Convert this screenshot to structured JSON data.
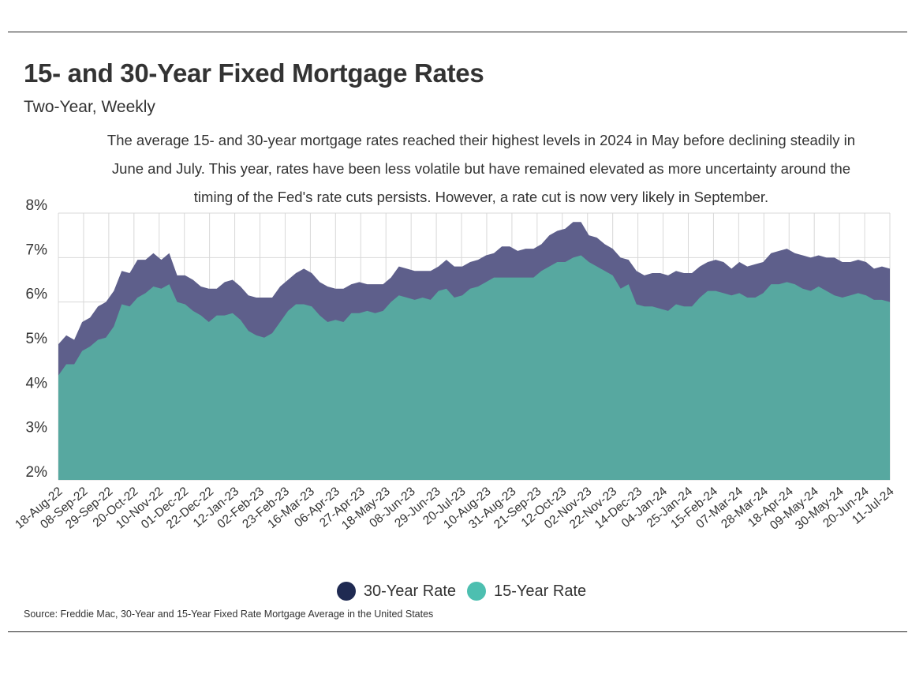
{
  "title": "15- and 30-Year Fixed Mortgage Rates",
  "subtitle": "Two-Year, Weekly",
  "description": "The average 15- and 30-year mortgage rates reached their highest levels in 2024 in May before declining steadily in June and July. This year, rates have been less volatile but have remained elevated as more uncertainty around the timing of the Fed's rate cuts persists. However, a rate cut is now very likely in September.",
  "source": "Source:  Freddie Mac, 30-Year  and 15-Year Fixed Rate Mortgage Average in the United States",
  "colors": {
    "rate30_fill": "#5e5f8b",
    "rate15_fill": "#57a8a0",
    "rate30_legend": "#1f2a52",
    "rate15_legend": "#4dbfb0",
    "grid": "#d8d8d8"
  },
  "chart_data": {
    "type": "area",
    "title": "15- and 30-Year Fixed Mortgage Rates",
    "subtitle": "Two-Year, Weekly",
    "ylim": [
      2,
      8
    ],
    "yticks": [
      "2%",
      "3%",
      "4%",
      "5%",
      "6%",
      "7%",
      "8%"
    ],
    "grid": true,
    "legend_position": "bottom-center",
    "x_tick_labels": [
      "18-Aug-22",
      "08-Sep-22",
      "29-Sep-22",
      "20-Oct-22",
      "10-Nov-22",
      "01-Dec-22",
      "22-Dec-22",
      "12-Jan-23",
      "02-Feb-23",
      "23-Feb-23",
      "16-Mar-23",
      "06-Apr-23",
      "27-Apr-23",
      "18-May-23",
      "08-Jun-23",
      "29-Jun-23",
      "20-Jul-23",
      "10-Aug-23",
      "31-Aug-23",
      "21-Sep-23",
      "12-Oct-23",
      "02-Nov-23",
      "22-Nov-23",
      "14-Dec-23",
      "04-Jan-24",
      "25-Jan-24",
      "15-Feb-24",
      "07-Mar-24",
      "28-Mar-24",
      "18-Apr-24",
      "09-May-24",
      "30-May-24",
      "20-Jun-24",
      "11-Jul-24"
    ],
    "x_range": [
      "18-Aug-22",
      "11-Jul-24"
    ],
    "series": [
      {
        "name": "30-Year Rate",
        "values": [
          5.05,
          5.25,
          5.15,
          5.55,
          5.65,
          5.9,
          6.0,
          6.25,
          6.7,
          6.65,
          6.95,
          6.95,
          7.1,
          6.95,
          7.1,
          6.6,
          6.6,
          6.5,
          6.35,
          6.3,
          6.3,
          6.45,
          6.5,
          6.35,
          6.15,
          6.1,
          6.1,
          6.1,
          6.35,
          6.5,
          6.65,
          6.75,
          6.65,
          6.45,
          6.35,
          6.3,
          6.3,
          6.4,
          6.45,
          6.4,
          6.4,
          6.4,
          6.55,
          6.8,
          6.75,
          6.7,
          6.7,
          6.7,
          6.8,
          6.95,
          6.8,
          6.8,
          6.9,
          6.95,
          7.05,
          7.1,
          7.25,
          7.25,
          7.15,
          7.2,
          7.2,
          7.3,
          7.5,
          7.6,
          7.65,
          7.8,
          7.8,
          7.5,
          7.45,
          7.3,
          7.2,
          7.0,
          6.95,
          6.7,
          6.6,
          6.65,
          6.65,
          6.6,
          6.7,
          6.65,
          6.65,
          6.8,
          6.9,
          6.95,
          6.9,
          6.75,
          6.9,
          6.8,
          6.85,
          6.9,
          7.1,
          7.15,
          7.2,
          7.1,
          7.05,
          7.0,
          7.05,
          7.0,
          7.0,
          6.9,
          6.9,
          6.95,
          6.9,
          6.75,
          6.8,
          6.75
        ],
        "stats_sample_count": 0
      },
      {
        "name": "15-Year Rate",
        "values": [
          4.35,
          4.6,
          4.6,
          4.9,
          5.0,
          5.15,
          5.2,
          5.45,
          5.95,
          5.9,
          6.1,
          6.2,
          6.35,
          6.3,
          6.4,
          6.0,
          5.95,
          5.8,
          5.7,
          5.55,
          5.7,
          5.7,
          5.75,
          5.6,
          5.35,
          5.25,
          5.2,
          5.3,
          5.55,
          5.8,
          5.95,
          5.95,
          5.9,
          5.7,
          5.55,
          5.6,
          5.55,
          5.75,
          5.75,
          5.8,
          5.75,
          5.8,
          6.0,
          6.15,
          6.1,
          6.05,
          6.1,
          6.05,
          6.25,
          6.3,
          6.1,
          6.15,
          6.3,
          6.35,
          6.45,
          6.55,
          6.55,
          6.55,
          6.55,
          6.55,
          6.55,
          6.7,
          6.8,
          6.9,
          6.9,
          7.0,
          7.05,
          6.9,
          6.8,
          6.7,
          6.6,
          6.3,
          6.4,
          5.95,
          5.9,
          5.9,
          5.85,
          5.8,
          5.95,
          5.9,
          5.9,
          6.1,
          6.25,
          6.25,
          6.2,
          6.15,
          6.2,
          6.1,
          6.1,
          6.2,
          6.4,
          6.4,
          6.45,
          6.4,
          6.3,
          6.25,
          6.35,
          6.25,
          6.15,
          6.1,
          6.15,
          6.2,
          6.15,
          6.05,
          6.05,
          6.0
        ]
      }
    ]
  }
}
